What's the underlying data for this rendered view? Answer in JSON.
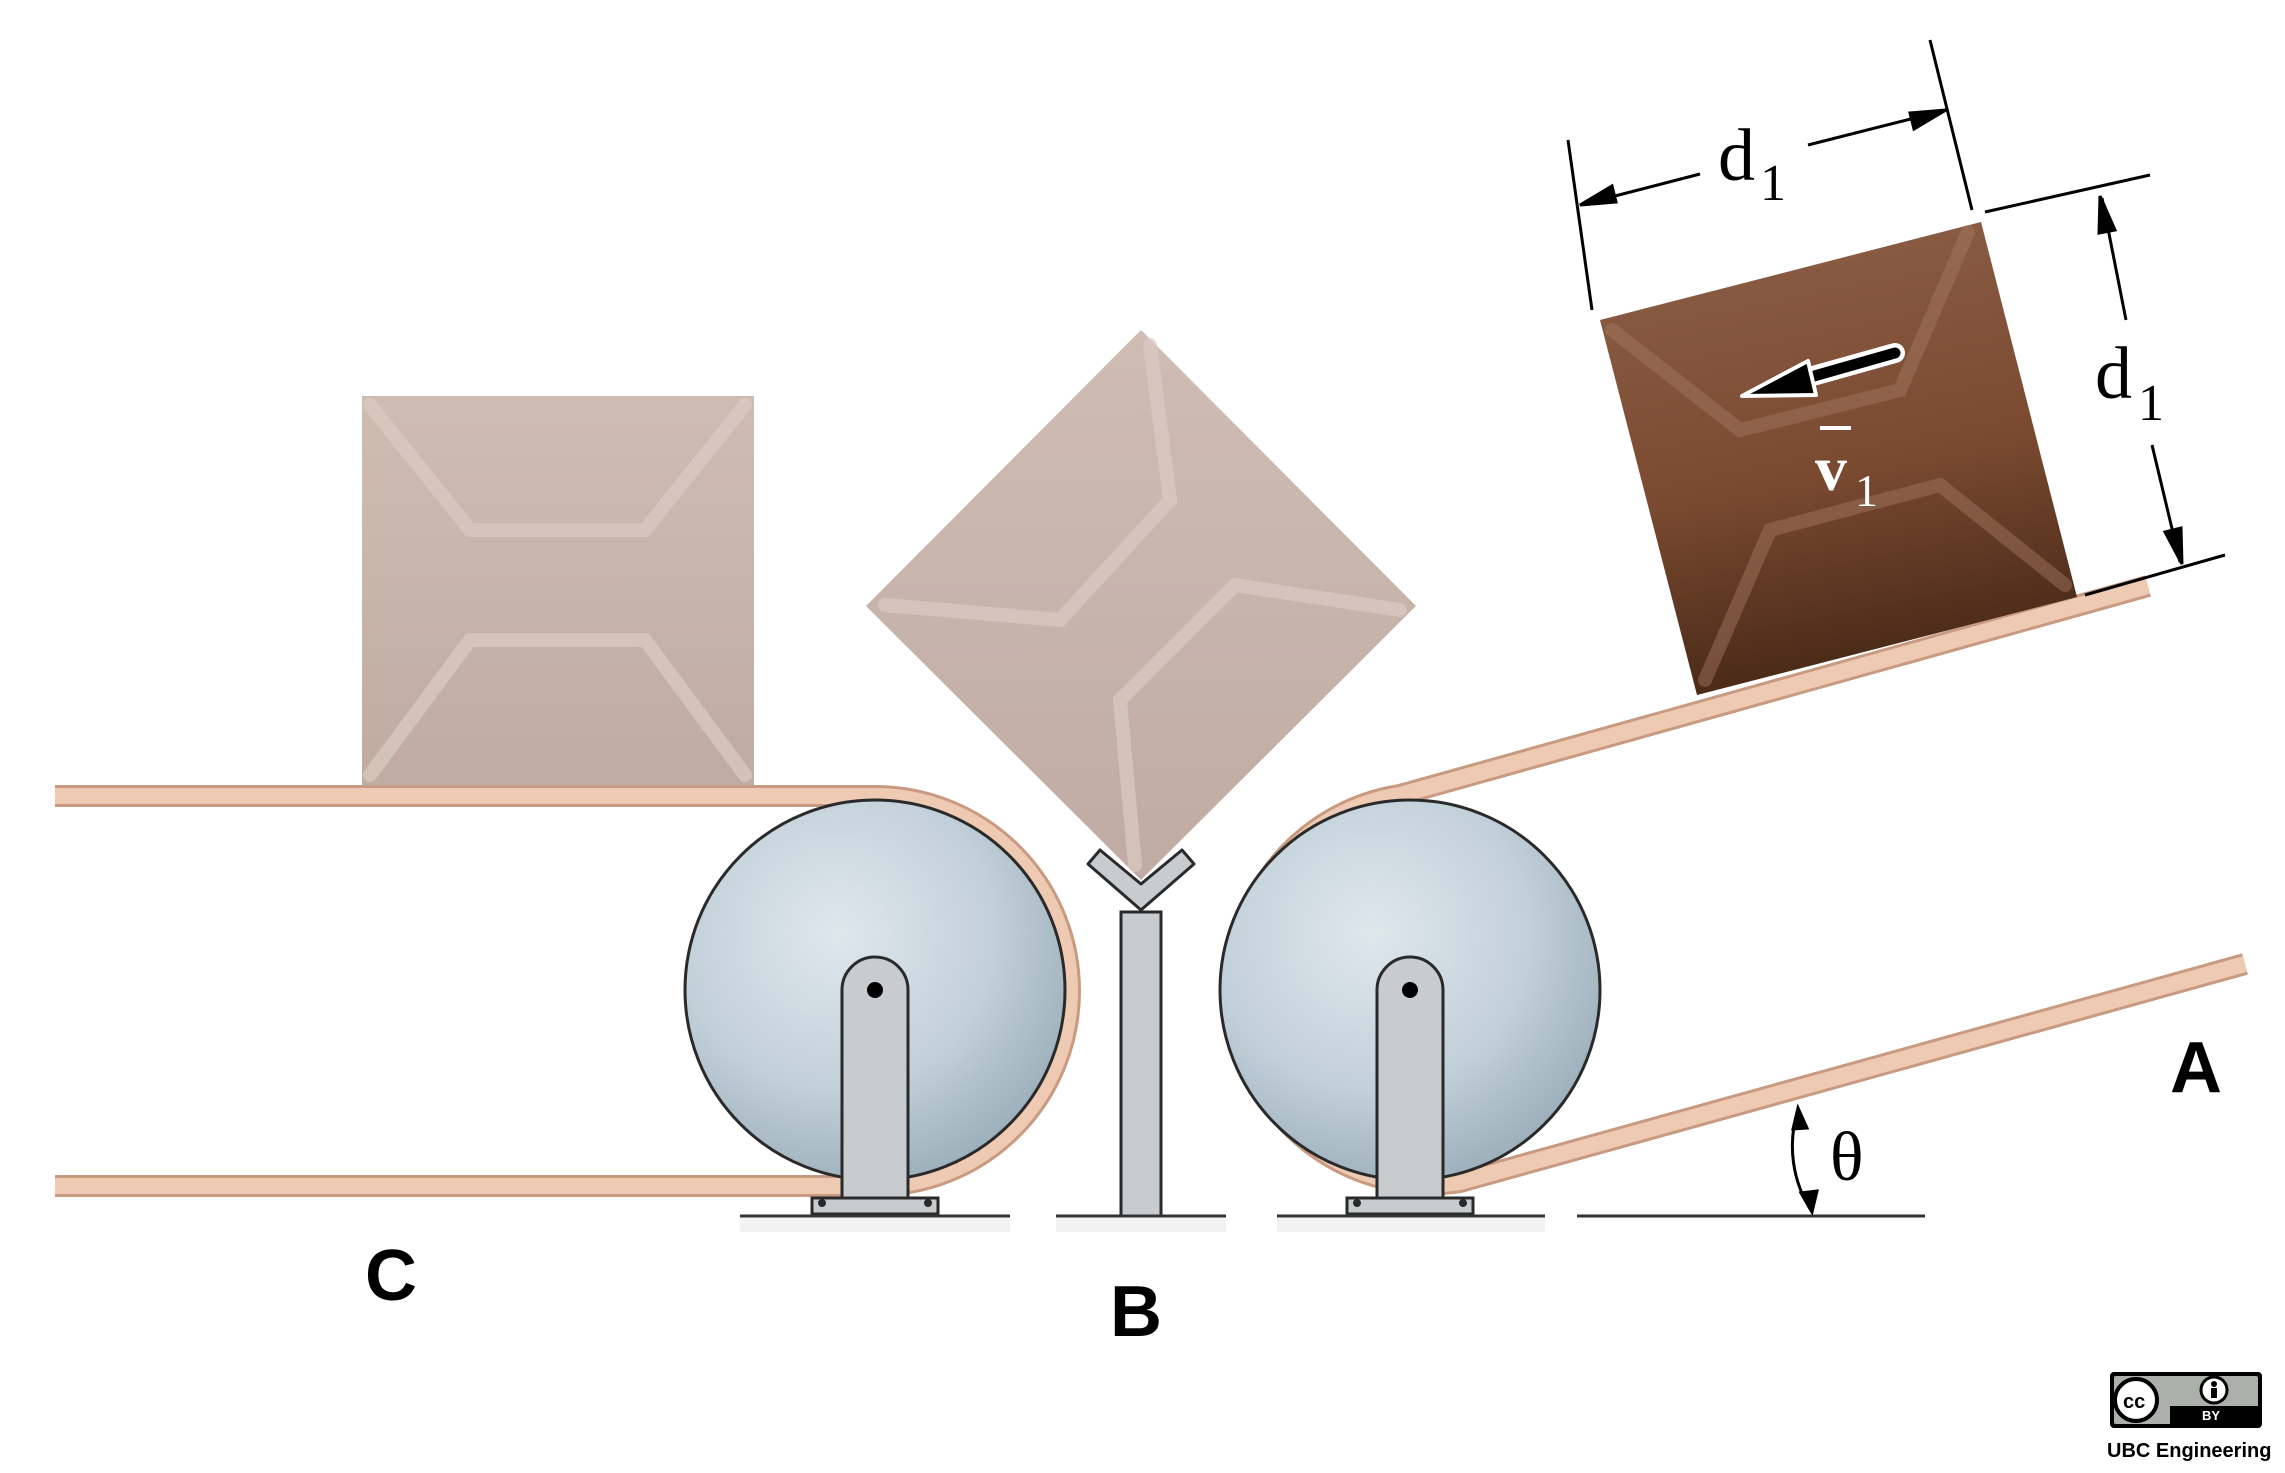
{
  "figure": {
    "labels": {
      "station_a": "A",
      "station_b": "B",
      "station_c": "C",
      "angle": "θ",
      "width_dim": "d",
      "width_dim_sub": "1",
      "height_dim": "d",
      "height_dim_sub": "1",
      "velocity": "v",
      "velocity_sub": "1"
    },
    "license": {
      "cc_text": "cc",
      "by_text": "BY",
      "caption": "UBC Engineering"
    },
    "colors": {
      "belt": "#e9c4ad",
      "belt_edge": "#c89a80",
      "box_faded": "#c6b0a6",
      "box_dark": "#7a4a30",
      "roller": "#c3d0d8",
      "support": "#c9cccf",
      "ground": "#333333"
    }
  }
}
